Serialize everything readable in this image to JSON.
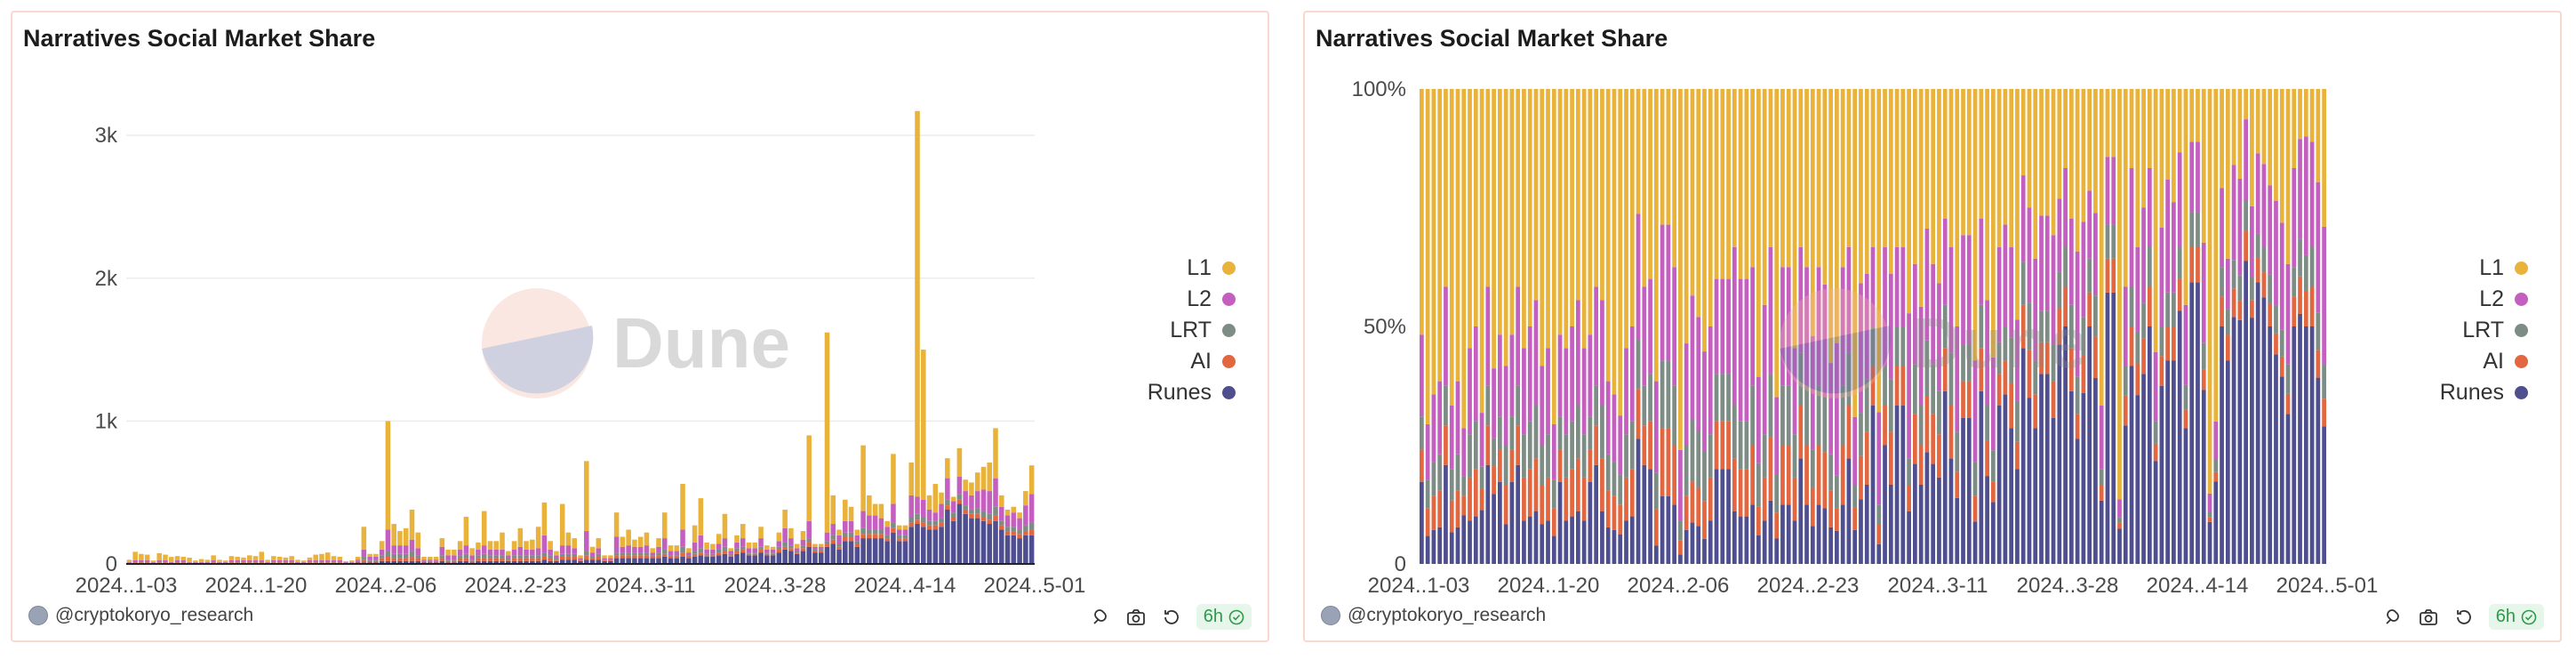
{
  "panels": [
    {
      "title": "Narratives Social Market Share",
      "author": "@cryptokoryo_research",
      "refresh_badge": "6h",
      "watermark": "Dune"
    },
    {
      "title": "Narratives Social Market Share",
      "author": "@cryptokoryo_research",
      "refresh_badge": "6h",
      "watermark": "Dune"
    }
  ],
  "icons": [
    "embed-icon",
    "camera-icon",
    "refresh-icon",
    "check-circle-icon"
  ],
  "colors": {
    "L1": "#e9b33b",
    "L2": "#c45fc0",
    "LRT": "#7d8c84",
    "AI": "#e2663f",
    "Runes": "#4f4e8f"
  },
  "chart_data": [
    {
      "type": "bar",
      "stacked": true,
      "title": "Narratives Social Market Share",
      "x_tick_labels": [
        "2024..1-03",
        "2024..1-20",
        "2024..2-06",
        "2024..2-23",
        "2024..3-11",
        "2024..3-28",
        "2024..4-14",
        "2024..5-01"
      ],
      "y_tick_labels": [
        "0",
        "1k",
        "2k",
        "3k"
      ],
      "ylim": [
        0,
        3200
      ],
      "grid": true,
      "legend_position": "right",
      "series": [
        {
          "name": "L1",
          "color": "#e9b33b",
          "values": [
            15,
            60,
            45,
            40,
            10,
            50,
            40,
            35,
            30,
            25,
            30,
            10,
            20,
            15,
            35,
            15,
            10,
            30,
            25,
            20,
            35,
            30,
            60,
            15,
            30,
            25,
            20,
            30,
            15,
            10,
            20,
            40,
            45,
            55,
            30,
            25,
            5,
            10,
            20,
            160,
            20,
            20,
            60,
            760,
            150,
            100,
            120,
            210,
            110,
            20,
            20,
            20,
            60,
            40,
            40,
            60,
            200,
            50,
            50,
            240,
            60,
            60,
            120,
            30,
            60,
            130,
            60,
            70,
            150,
            230,
            60,
            30,
            290,
            90,
            70,
            20,
            490,
            40,
            70,
            20,
            20,
            170,
            70,
            110,
            50,
            70,
            90,
            30,
            60,
            180,
            40,
            40,
            320,
            30,
            120,
            260,
            50,
            40,
            70,
            170,
            20,
            50,
            100,
            40,
            40,
            80,
            30,
            20,
            60,
            130,
            70,
            30,
            60,
            600,
            20,
            20,
            1400,
            200,
            40,
            150,
            100,
            40,
            460,
            140,
            80,
            100,
            40,
            350,
            30,
            30,
            230,
            2700,
            1050,
            100,
            200,
            80,
            140,
            30,
            200,
            80,
            90,
            130,
            160,
            200,
            350,
            80,
            40,
            40,
            40,
            100,
            200
          ]
        },
        {
          "name": "L2",
          "color": "#c45fc0",
          "values": [
            5,
            10,
            10,
            10,
            5,
            10,
            10,
            5,
            10,
            10,
            5,
            5,
            5,
            5,
            10,
            5,
            5,
            10,
            10,
            10,
            10,
            10,
            10,
            5,
            10,
            10,
            10,
            10,
            5,
            5,
            10,
            10,
            10,
            10,
            10,
            10,
            5,
            5,
            10,
            50,
            20,
            20,
            40,
            150,
            60,
            60,
            60,
            80,
            50,
            10,
            10,
            10,
            60,
            30,
            30,
            40,
            60,
            30,
            40,
            60,
            40,
            40,
            40,
            20,
            40,
            60,
            40,
            40,
            50,
            120,
            40,
            20,
            60,
            60,
            40,
            10,
            140,
            30,
            40,
            10,
            10,
            110,
            40,
            50,
            40,
            40,
            50,
            20,
            40,
            80,
            30,
            30,
            120,
            20,
            60,
            90,
            30,
            30,
            40,
            60,
            20,
            40,
            60,
            30,
            30,
            60,
            20,
            20,
            40,
            100,
            50,
            20,
            40,
            120,
            20,
            20,
            60,
            80,
            60,
            80,
            80,
            40,
            120,
            100,
            100,
            80,
            60,
            130,
            40,
            40,
            150,
            120,
            120,
            80,
            60,
            100,
            150,
            80,
            120,
            100,
            100,
            120,
            150,
            160,
            200,
            100,
            80,
            100,
            80,
            140,
            200
          ]
        },
        {
          "name": "LRT",
          "color": "#7d8c84",
          "values": [
            2,
            5,
            5,
            5,
            2,
            5,
            5,
            2,
            5,
            5,
            2,
            2,
            2,
            2,
            5,
            2,
            2,
            5,
            5,
            5,
            5,
            5,
            5,
            2,
            5,
            5,
            5,
            5,
            2,
            2,
            5,
            5,
            5,
            5,
            5,
            5,
            2,
            2,
            5,
            20,
            10,
            10,
            20,
            40,
            30,
            30,
            30,
            40,
            20,
            5,
            5,
            5,
            20,
            10,
            10,
            20,
            30,
            10,
            20,
            30,
            20,
            20,
            20,
            10,
            20,
            20,
            20,
            20,
            20,
            30,
            20,
            10,
            20,
            20,
            20,
            5,
            30,
            10,
            20,
            5,
            5,
            20,
            20,
            20,
            20,
            20,
            20,
            10,
            20,
            30,
            10,
            10,
            40,
            10,
            20,
            30,
            10,
            10,
            20,
            30,
            10,
            20,
            20,
            10,
            10,
            20,
            10,
            10,
            20,
            30,
            20,
            10,
            20,
            30,
            10,
            10,
            20,
            30,
            20,
            30,
            30,
            20,
            40,
            30,
            30,
            30,
            20,
            40,
            20,
            20,
            40,
            40,
            40,
            30,
            30,
            30,
            40,
            30,
            40,
            30,
            30,
            40,
            40,
            40,
            60,
            30,
            30,
            30,
            30,
            40,
            50
          ]
        },
        {
          "name": "AI",
          "color": "#e2663f",
          "values": [
            2,
            5,
            5,
            5,
            2,
            5,
            5,
            2,
            5,
            5,
            2,
            2,
            2,
            2,
            5,
            2,
            2,
            5,
            5,
            5,
            5,
            5,
            5,
            2,
            5,
            5,
            5,
            5,
            2,
            2,
            5,
            5,
            5,
            5,
            5,
            5,
            2,
            2,
            5,
            20,
            10,
            10,
            20,
            30,
            20,
            20,
            20,
            30,
            20,
            5,
            5,
            5,
            20,
            10,
            10,
            20,
            20,
            10,
            20,
            20,
            20,
            20,
            20,
            10,
            20,
            20,
            20,
            20,
            20,
            20,
            20,
            10,
            20,
            20,
            20,
            5,
            30,
            10,
            20,
            5,
            5,
            20,
            20,
            20,
            20,
            20,
            20,
            10,
            20,
            20,
            10,
            10,
            30,
            10,
            20,
            20,
            10,
            10,
            20,
            20,
            10,
            20,
            20,
            10,
            10,
            20,
            10,
            10,
            20,
            20,
            20,
            10,
            20,
            30,
            10,
            10,
            20,
            30,
            20,
            30,
            30,
            20,
            30,
            30,
            30,
            30,
            20,
            30,
            20,
            20,
            30,
            30,
            30,
            30,
            30,
            30,
            30,
            30,
            30,
            30,
            30,
            30,
            30,
            30,
            40,
            30,
            30,
            30,
            30,
            30,
            40
          ]
        },
        {
          "name": "Runes",
          "color": "#4f4e8f",
          "values": [
            5,
            5,
            5,
            5,
            5,
            5,
            5,
            5,
            5,
            5,
            5,
            5,
            5,
            5,
            5,
            5,
            5,
            5,
            5,
            5,
            5,
            5,
            5,
            5,
            5,
            5,
            5,
            5,
            5,
            5,
            5,
            5,
            5,
            5,
            5,
            5,
            5,
            5,
            10,
            10,
            10,
            10,
            20,
            20,
            20,
            20,
            20,
            20,
            20,
            10,
            10,
            10,
            20,
            10,
            10,
            20,
            20,
            10,
            20,
            20,
            20,
            20,
            20,
            20,
            20,
            20,
            20,
            20,
            20,
            30,
            20,
            20,
            30,
            30,
            30,
            20,
            30,
            30,
            30,
            20,
            20,
            40,
            40,
            40,
            40,
            40,
            40,
            40,
            40,
            50,
            40,
            40,
            50,
            40,
            50,
            60,
            50,
            50,
            60,
            70,
            50,
            70,
            80,
            60,
            60,
            80,
            60,
            60,
            80,
            100,
            90,
            70,
            90,
            120,
            80,
            80,
            120,
            140,
            100,
            160,
            160,
            120,
            180,
            180,
            180,
            180,
            160,
            220,
            160,
            160,
            260,
            280,
            260,
            240,
            240,
            260,
            380,
            300,
            420,
            350,
            320,
            320,
            300,
            280,
            300,
            240,
            200,
            200,
            180,
            200,
            200
          ]
        }
      ]
    },
    {
      "type": "bar",
      "stacked": true,
      "normalized": true,
      "title": "Narratives Social Market Share",
      "x_tick_labels": [
        "2024..1-03",
        "2024..1-20",
        "2024..2-06",
        "2024..2-23",
        "2024..3-11",
        "2024..3-28",
        "2024..4-14",
        "2024..5-01"
      ],
      "y_tick_labels": [
        "0",
        "50%",
        "100%"
      ],
      "ylim": [
        0,
        1
      ],
      "grid": false,
      "legend_position": "right",
      "note": "Same data as left chart, each bar normalized to 100%"
    }
  ]
}
